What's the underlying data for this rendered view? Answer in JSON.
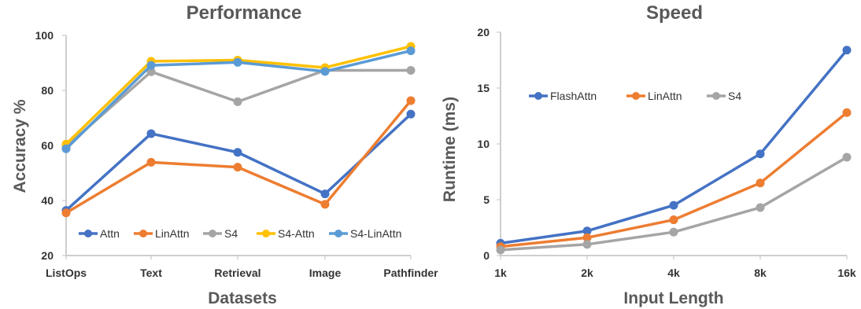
{
  "chart_data": [
    {
      "type": "line",
      "title": "Performance",
      "xlabel": "Datasets",
      "ylabel": "Accuracy %",
      "categories": [
        "ListOps",
        "Text",
        "Retrieval",
        "Image",
        "Pathfinder"
      ],
      "ylim": [
        20,
        100
      ],
      "yticks": [
        20,
        40,
        60,
        80,
        100
      ],
      "grid": false,
      "legend_position": "bottom",
      "series": [
        {
          "name": "Attn",
          "color": "#4472C4",
          "values": [
            36.4,
            64.3,
            57.5,
            42.4,
            71.4
          ]
        },
        {
          "name": "LinAttn",
          "color": "#ED7D31",
          "values": [
            35.5,
            53.9,
            52.1,
            38.6,
            76.3
          ]
        },
        {
          "name": "S4",
          "color": "#A5A5A5",
          "values": [
            59.6,
            86.8,
            75.9,
            87.3,
            87.3
          ]
        },
        {
          "name": "S4-Attn",
          "color": "#FFC000",
          "values": [
            60.5,
            90.6,
            91.0,
            88.3,
            96.0
          ]
        },
        {
          "name": "S4-LinAttn",
          "color": "#5B9BD5",
          "values": [
            58.8,
            89.1,
            90.2,
            86.9,
            94.4
          ]
        }
      ]
    },
    {
      "type": "line",
      "title": "Speed",
      "xlabel": "Input Length",
      "ylabel": "Runtime (ms)",
      "categories": [
        "1k",
        "2k",
        "4k",
        "8k",
        "16k"
      ],
      "ylim": [
        0,
        20
      ],
      "yticks": [
        0,
        5,
        10,
        15,
        20
      ],
      "grid": false,
      "legend_position": "top-left",
      "series": [
        {
          "name": "FlashAttn",
          "color": "#4472C4",
          "values": [
            1.1,
            2.2,
            4.5,
            9.1,
            18.4
          ]
        },
        {
          "name": "LinAttn",
          "color": "#ED7D31",
          "values": [
            0.8,
            1.6,
            3.2,
            6.5,
            12.8
          ]
        },
        {
          "name": "S4",
          "color": "#A5A5A5",
          "values": [
            0.5,
            1.0,
            2.1,
            4.3,
            8.8
          ]
        }
      ]
    }
  ]
}
